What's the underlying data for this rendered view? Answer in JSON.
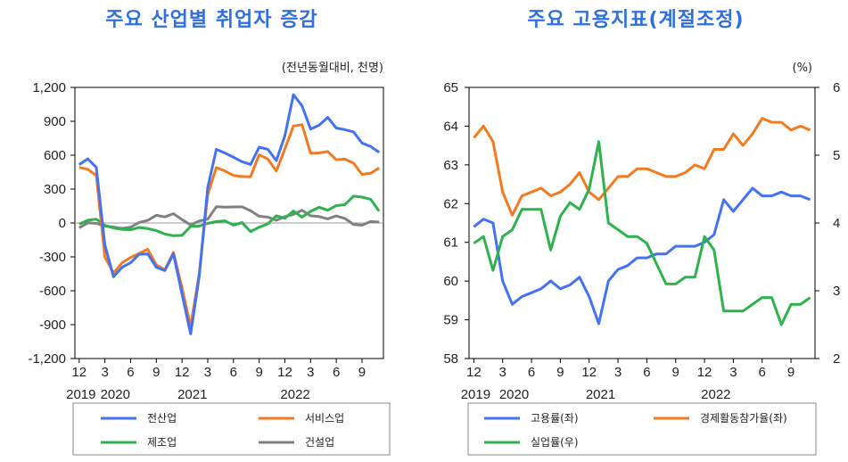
{
  "chart_data": [
    {
      "type": "line",
      "title": "주요 산업별 취업자 증감",
      "unit": "(전년동월대비, 천명)",
      "x_months": [
        "2019-12",
        "2020-01",
        "2020-02",
        "2020-03",
        "2020-04",
        "2020-05",
        "2020-06",
        "2020-07",
        "2020-08",
        "2020-09",
        "2020-10",
        "2020-11",
        "2020-12",
        "2021-01",
        "2021-02",
        "2021-03",
        "2021-04",
        "2021-05",
        "2021-06",
        "2021-07",
        "2021-08",
        "2021-09",
        "2021-10",
        "2021-11",
        "2021-12",
        "2022-01",
        "2022-02",
        "2022-03",
        "2022-04",
        "2022-05",
        "2022-06",
        "2022-07",
        "2022-08",
        "2022-09",
        "2022-10",
        "2022-11"
      ],
      "x_tick_labels": [
        "12",
        "3",
        "6",
        "9",
        "12",
        "3",
        "6",
        "9",
        "12",
        "3",
        "6",
        "9"
      ],
      "x_year_labels": [
        "2019",
        "2020",
        "2021",
        "2022"
      ],
      "ylim": [
        -1200,
        1200
      ],
      "y_ticks": [
        "1,200",
        "900",
        "600",
        "300",
        "0",
        "-300",
        "-600",
        "-900",
        "-1,200"
      ],
      "grid": false,
      "series": [
        {
          "name": "전산업",
          "color": "#4472f0",
          "values": [
            516,
            568,
            492,
            -195,
            -476,
            -392,
            -352,
            -277,
            -274,
            -392,
            -421,
            -273,
            -628,
            -982,
            -473,
            314,
            652,
            619,
            582,
            542,
            518,
            671,
            652,
            553,
            773,
            1135,
            1037,
            831,
            865,
            935,
            841,
            826,
            807,
            707,
            677,
            626
          ]
        },
        {
          "name": "서비스업",
          "color": "#f47a1f",
          "values": [
            492,
            475,
            420,
            -301,
            -443,
            -352,
            -305,
            -269,
            -233,
            -371,
            -414,
            -261,
            -572,
            -917,
            -449,
            254,
            490,
            460,
            421,
            411,
            409,
            603,
            567,
            460,
            657,
            858,
            870,
            618,
            620,
            632,
            560,
            565,
            530,
            430,
            440,
            487
          ]
        },
        {
          "name": "제조업",
          "color": "#2eb24e",
          "values": [
            -10,
            24,
            34,
            -22,
            -44,
            -56,
            -60,
            -40,
            -50,
            -68,
            -98,
            -113,
            -110,
            -30,
            -28,
            -4,
            12,
            19,
            -19,
            3,
            -76,
            -38,
            -8,
            64,
            42,
            106,
            51,
            103,
            139,
            113,
            153,
            162,
            238,
            229,
            210,
            105
          ]
        },
        {
          "name": "건설업",
          "color": "#808080",
          "values": [
            -43,
            1,
            -3,
            -27,
            -36,
            -48,
            -37,
            5,
            23,
            68,
            54,
            82,
            30,
            -17,
            17,
            34,
            144,
            140,
            142,
            143,
            108,
            59,
            52,
            24,
            56,
            76,
            113,
            63,
            57,
            36,
            62,
            40,
            -13,
            -20,
            13,
            8
          ]
        }
      ]
    },
    {
      "type": "line",
      "title": "주요 고용지표(계절조정)",
      "unit_right": "(%)",
      "x_months": [
        "2019-12",
        "2020-01",
        "2020-02",
        "2020-03",
        "2020-04",
        "2020-05",
        "2020-06",
        "2020-07",
        "2020-08",
        "2020-09",
        "2020-10",
        "2020-11",
        "2020-12",
        "2021-01",
        "2021-02",
        "2021-03",
        "2021-04",
        "2021-05",
        "2021-06",
        "2021-07",
        "2021-08",
        "2021-09",
        "2021-10",
        "2021-11",
        "2021-12",
        "2022-01",
        "2022-02",
        "2022-03",
        "2022-04",
        "2022-05",
        "2022-06",
        "2022-07",
        "2022-08",
        "2022-09",
        "2022-10",
        "2022-11"
      ],
      "x_tick_labels": [
        "12",
        "3",
        "6",
        "9",
        "12",
        "3",
        "6",
        "9",
        "12",
        "3",
        "6",
        "9"
      ],
      "x_year_labels": [
        "2019",
        "2020",
        "2021",
        "2022"
      ],
      "ylim_left": [
        58,
        65
      ],
      "y_ticks_left": [
        "65",
        "64",
        "63",
        "62",
        "61",
        "60",
        "59",
        "58"
      ],
      "ylim_right": [
        2,
        6
      ],
      "y_ticks_right": [
        "6",
        "5",
        "4",
        "3",
        "2"
      ],
      "grid": false,
      "series": [
        {
          "name": "고용률(좌)",
          "axis": "left",
          "color": "#4472f0",
          "values": [
            61.4,
            61.6,
            61.5,
            60.0,
            59.4,
            59.6,
            59.7,
            59.8,
            60.0,
            59.8,
            59.9,
            60.1,
            59.6,
            58.9,
            60.0,
            60.3,
            60.4,
            60.6,
            60.6,
            60.7,
            60.7,
            60.9,
            60.9,
            60.9,
            61.0,
            61.2,
            62.1,
            61.8,
            62.1,
            62.4,
            62.2,
            62.2,
            62.3,
            62.2,
            62.2,
            62.1
          ]
        },
        {
          "name": "경제활동참가율(좌)",
          "axis": "left",
          "color": "#f47a1f",
          "values": [
            63.7,
            64.0,
            63.6,
            62.3,
            61.7,
            62.2,
            62.3,
            62.4,
            62.2,
            62.3,
            62.5,
            62.8,
            62.3,
            62.1,
            62.4,
            62.7,
            62.7,
            62.9,
            62.9,
            62.8,
            62.7,
            62.7,
            62.8,
            63.0,
            62.9,
            63.4,
            63.4,
            63.8,
            63.5,
            63.8,
            64.2,
            64.1,
            64.1,
            63.9,
            64.0,
            63.9
          ]
        },
        {
          "name": "실업률(우)",
          "axis": "right",
          "color": "#2eb24e",
          "values": [
            3.7,
            3.8,
            3.3,
            3.8,
            3.9,
            4.2,
            4.2,
            4.2,
            3.6,
            4.1,
            4.3,
            4.2,
            4.5,
            5.2,
            4.0,
            3.9,
            3.8,
            3.8,
            3.7,
            3.4,
            3.1,
            3.1,
            3.2,
            3.2,
            3.8,
            3.6,
            2.7,
            2.7,
            2.7,
            2.8,
            2.9,
            2.9,
            2.5,
            2.8,
            2.8,
            2.9
          ]
        }
      ]
    }
  ]
}
